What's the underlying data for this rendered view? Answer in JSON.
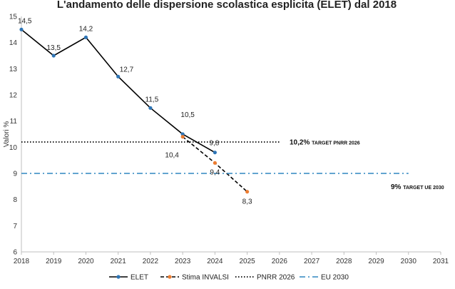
{
  "chart_data": {
    "type": "line",
    "title": "L'andamento delle dispersione scolastica esplicita (ELET) dal 2018",
    "xlabel": "",
    "ylabel": "Valori %",
    "x": [
      2018,
      2019,
      2020,
      2021,
      2022,
      2023,
      2024,
      2025,
      2026,
      2027,
      2028,
      2029,
      2030,
      2031
    ],
    "xlim": [
      2018,
      2031
    ],
    "ylim": [
      6,
      15
    ],
    "yticks": [
      6,
      7,
      8,
      9,
      10,
      11,
      12,
      13,
      14,
      15
    ],
    "grid": false,
    "legend_position": "bottom",
    "series": [
      {
        "name": "ELET",
        "color": "#000000",
        "marker_color": "#2E75B6",
        "style": "solid",
        "points": [
          {
            "x": 2018,
            "y": 14.5,
            "label": "14,5"
          },
          {
            "x": 2019,
            "y": 13.5,
            "label": "13,5"
          },
          {
            "x": 2020,
            "y": 14.2,
            "label": "14,2"
          },
          {
            "x": 2021,
            "y": 12.7,
            "label": "12,7"
          },
          {
            "x": 2022,
            "y": 11.5,
            "label": "11,5"
          },
          {
            "x": 2023,
            "y": 10.5,
            "label": "10,5"
          },
          {
            "x": 2024,
            "y": 9.8,
            "label": "9,8"
          }
        ]
      },
      {
        "name": "Stima INVALSI",
        "color": "#000000",
        "marker_color": "#ED7D31",
        "style": "dashed",
        "points": [
          {
            "x": 2023,
            "y": 10.4,
            "label": "10,4"
          },
          {
            "x": 2024,
            "y": 9.4,
            "label": "9,4"
          },
          {
            "x": 2025,
            "y": 8.3,
            "label": "8,3"
          }
        ]
      },
      {
        "name": "PNRR 2026",
        "color": "#000000",
        "style": "dotted",
        "points": [
          {
            "x": 2018,
            "y": 10.2
          },
          {
            "x": 2026,
            "y": 10.2
          }
        ]
      },
      {
        "name": "EU 2030",
        "color": "#2E86C1",
        "style": "dashdot",
        "points": [
          {
            "x": 2018,
            "y": 9.0
          },
          {
            "x": 2030,
            "y": 9.0
          }
        ]
      }
    ],
    "annotations": [
      {
        "value": "10,2%",
        "suffix": "TARGET PNRR 2026",
        "y": 10.2
      },
      {
        "value": "9%",
        "suffix": "TARGET UE 2030",
        "y": 9.0
      }
    ]
  }
}
